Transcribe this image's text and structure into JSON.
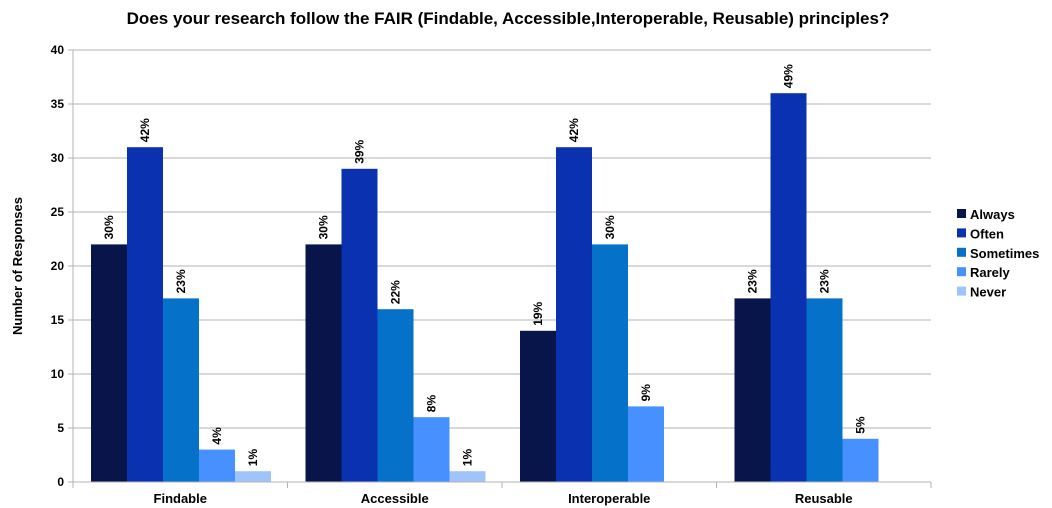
{
  "chart_data": {
    "type": "bar",
    "title": "Does your research follow the FAIR (Findable, Accessible,Interoperable, Reusable) principles?",
    "xlabel": "",
    "ylabel": "Number of Responses",
    "ylim": [
      0,
      40
    ],
    "yticks": [
      0,
      5,
      10,
      15,
      20,
      25,
      30,
      35,
      40
    ],
    "grid": true,
    "legend_position": "right",
    "categories": [
      "Findable",
      "Accessible",
      "Interoperable",
      "Reusable"
    ],
    "series": [
      {
        "name": "Always",
        "color": "#07154a",
        "values": [
          22,
          22,
          14,
          17
        ],
        "labels": [
          "30%",
          "30%",
          "19%",
          "23%"
        ]
      },
      {
        "name": "Often",
        "color": "#0a31b0",
        "values": [
          31,
          29,
          31,
          36
        ],
        "labels": [
          "42%",
          "39%",
          "42%",
          "49%"
        ]
      },
      {
        "name": "Sometimes",
        "color": "#0571c8",
        "values": [
          17,
          16,
          22,
          17
        ],
        "labels": [
          "23%",
          "22%",
          "30%",
          "23%"
        ]
      },
      {
        "name": "Rarely",
        "color": "#4690ff",
        "values": [
          3,
          6,
          7,
          4
        ],
        "labels": [
          "4%",
          "8%",
          "9%",
          "5%"
        ]
      },
      {
        "name": "Never",
        "color": "#9fc4fb",
        "values": [
          1,
          1,
          0,
          0
        ],
        "labels": [
          "1%",
          "1%",
          "",
          ""
        ]
      }
    ]
  }
}
